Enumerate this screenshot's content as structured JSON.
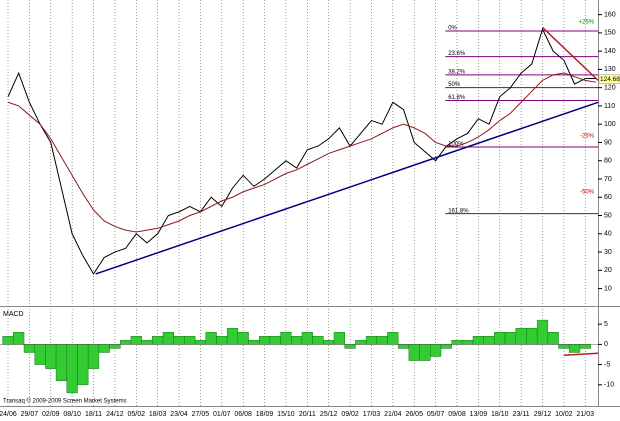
{
  "chart_data": [
    {
      "type": "line",
      "categories": [
        "24/06",
        null,
        "29/07",
        null,
        "02/09",
        null,
        "08/10",
        null,
        "18/11",
        null,
        "24/12",
        null,
        "05/02",
        null,
        "18/03",
        null,
        "23/04",
        null,
        "27/05",
        null,
        "01/07",
        null,
        "06/08",
        null,
        "18/09",
        null,
        "15/10",
        null,
        "20/11",
        null,
        "25/12",
        null,
        "09/02",
        null,
        "17/03",
        null,
        "21/04",
        null,
        "26/05",
        null,
        "05/07",
        null,
        "09/08",
        null,
        "13/09",
        null,
        "18/10",
        null,
        "23/11",
        null,
        "29/12",
        null,
        "10/02",
        null,
        "21/03",
        null
      ],
      "series": [
        {
          "color": "#000000",
          "values": [
            115,
            128,
            112,
            100,
            90,
            65,
            40,
            28,
            18,
            27,
            30,
            32,
            40,
            35,
            40,
            50,
            52,
            55,
            52,
            60,
            55,
            65,
            72,
            66,
            70,
            75,
            80,
            76,
            86,
            88,
            92,
            98,
            88,
            95,
            102,
            100,
            112,
            108,
            90,
            85,
            80,
            88,
            92,
            95,
            103,
            100,
            115,
            120,
            128,
            133,
            152,
            140,
            135,
            122,
            125,
            125
          ]
        },
        {
          "color": "#8b1a1a",
          "values": [
            112,
            110,
            105,
            100,
            92,
            82,
            72,
            62,
            53,
            47,
            44,
            42,
            41,
            42,
            43,
            45,
            47,
            50,
            52,
            55,
            58,
            60,
            63,
            65,
            67,
            70,
            73,
            75,
            78,
            81,
            84,
            86,
            88,
            90,
            92,
            95,
            98,
            100,
            98,
            95,
            90,
            88,
            88,
            90,
            93,
            97,
            102,
            106,
            112,
            118,
            124,
            127,
            128,
            126,
            124,
            123
          ]
        }
      ],
      "ylim": [
        1,
        168
      ],
      "yticks": [
        10,
        20,
        30,
        40,
        50,
        60,
        70,
        80,
        90,
        100,
        110,
        120,
        130,
        140,
        150,
        160
      ],
      "grid": true,
      "last_value": 124.68,
      "levels": [
        {
          "label": "0%",
          "value": 151
        },
        {
          "label": "23.6%",
          "value": 137
        },
        {
          "label": "38.2%",
          "value": 127
        },
        {
          "label": "50%",
          "value": 120
        },
        {
          "label": "61.8%",
          "value": 113
        },
        {
          "label": "100%",
          "value": 87.5
        },
        {
          "label": "161.8%",
          "value": 51
        }
      ],
      "level_color": "#800080",
      "pct_labels": [
        {
          "label": "+25%",
          "value": 156,
          "color": "#008000"
        },
        {
          "label": "-25%",
          "value": 93.5,
          "color": "#c00000"
        },
        {
          "label": "-50%",
          "value": 63,
          "color": "#c00000"
        }
      ],
      "trendlines": [
        {
          "x": [
            8.2,
            55.2
          ],
          "y": [
            18,
            112
          ],
          "color": "#000080"
        },
        {
          "x": [
            50,
            55.2
          ],
          "y": [
            153,
            124
          ],
          "color": "#b22222"
        }
      ],
      "copyright": "Transaq © 2009-2009 Screen Market Systems"
    },
    {
      "type": "bar",
      "title": "MACD",
      "color": "#33cc33",
      "values": [
        2,
        3,
        -2,
        -5,
        -6,
        -9,
        -12,
        -10,
        -6,
        -2,
        -1,
        1,
        2,
        1,
        2,
        3,
        2,
        2,
        1,
        3,
        2,
        4,
        3,
        1,
        2,
        2,
        3,
        2,
        3,
        2,
        1,
        3,
        -1,
        1,
        2,
        2,
        3,
        -1,
        -4,
        -4,
        -3,
        -1,
        1,
        1,
        2,
        2,
        3,
        3,
        4,
        4,
        6,
        3,
        -1,
        -2,
        -1,
        0
      ],
      "ylim": [
        -15,
        9
      ],
      "yticks": [
        5,
        0,
        -5,
        -10
      ],
      "trendlines": [
        {
          "x": [
            52,
            55.2
          ],
          "y": [
            -2.7,
            -2.2
          ],
          "color": "#b22222"
        }
      ]
    }
  ]
}
